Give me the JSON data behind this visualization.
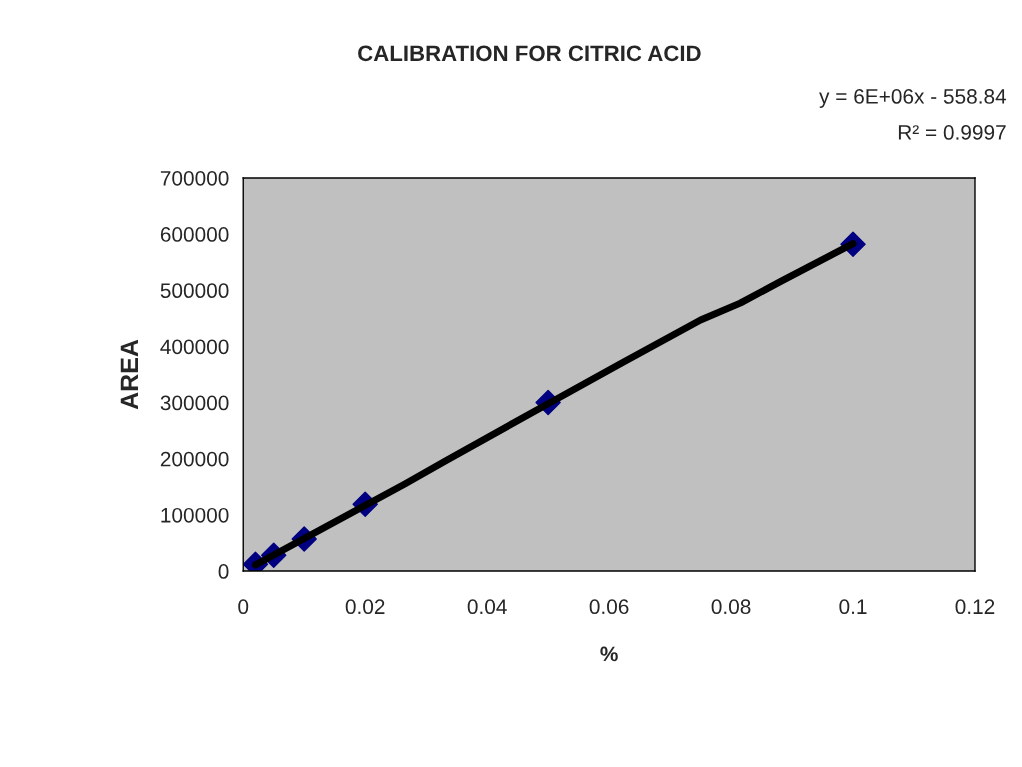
{
  "chart_data": {
    "type": "scatter",
    "title": "CALIBRATION FOR CITRIC ACID",
    "xlabel": "%",
    "ylabel": "AREA",
    "x": [
      0.002,
      0.005,
      0.01,
      0.02,
      0.05,
      0.1
    ],
    "series": [
      {
        "color": "#000080",
        "marker": "diamond",
        "values": [
          12000,
          28000,
          57000,
          119000,
          300000,
          582000
        ]
      },
      {
        "type": "line",
        "color": "#000000",
        "x": [
          0.002,
          0.0265,
          0.033,
          0.05,
          0.062,
          0.075,
          0.0815,
          0.088,
          0.1
        ],
        "values": [
          11000,
          155000,
          195000,
          298000,
          370000,
          447000,
          477000,
          515000,
          583000
        ]
      }
    ],
    "annotations": [
      "y = 6E+06x - 558.84",
      "R² = 0.9997"
    ],
    "xlim": [
      0,
      0.12
    ],
    "xticks": [
      0,
      0.02,
      0.04,
      0.06,
      0.08,
      0.1,
      0.12
    ],
    "ylim": [
      0,
      700000
    ],
    "yticks": [
      0,
      100000,
      200000,
      300000,
      400000,
      500000,
      600000,
      700000
    ],
    "grid": false,
    "legend": false
  }
}
